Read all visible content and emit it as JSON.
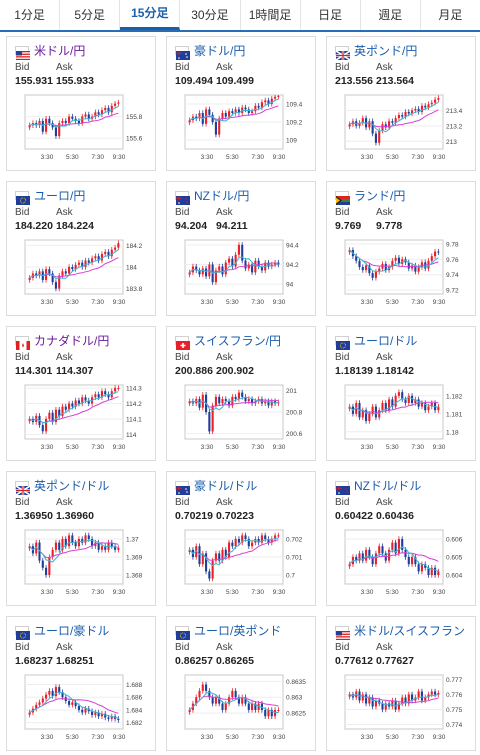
{
  "tabs": [
    "1分足",
    "5分足",
    "15分足",
    "30分足",
    "1時間足",
    "日足",
    "週足",
    "月足"
  ],
  "active_tab": 2,
  "labels": {
    "bid": "Bid",
    "ask": "Ask"
  },
  "colors": {
    "up": "#e8202a",
    "down": "#1f3d99",
    "ma_short": "#3cb4d4",
    "ma_long": "#d640d6",
    "link": "#1b5cab"
  },
  "time_ticks": [
    "3:30",
    "5:30",
    "7:30",
    "9:30"
  ],
  "pairs": [
    {
      "name": "米ドル/円",
      "flag": "us-jp",
      "name_color": "purple",
      "bid": "155.931",
      "ask": "155.933",
      "y_ticks": [
        "155.8",
        "155.6"
      ],
      "ylim": [
        155.5,
        156.0
      ],
      "candles": [
        155.72,
        155.74,
        155.72,
        155.76,
        155.66,
        155.78,
        155.74,
        155.7,
        155.62,
        155.74,
        155.76,
        155.74,
        155.8,
        155.78,
        155.76,
        155.74,
        155.8,
        155.82,
        155.78,
        155.8,
        155.84,
        155.82,
        155.86,
        155.88,
        155.84,
        155.9,
        155.92,
        155.93
      ]
    },
    {
      "name": "豪ドル/円",
      "flag": "au-jp",
      "name_color": "link",
      "bid": "109.494",
      "ask": "109.499",
      "y_ticks": [
        "109.4",
        "109.2",
        "109"
      ],
      "ylim": [
        108.9,
        109.5
      ],
      "candles": [
        109.22,
        109.26,
        109.24,
        109.3,
        109.18,
        109.34,
        109.28,
        109.2,
        109.06,
        109.24,
        109.3,
        109.26,
        109.32,
        109.3,
        109.34,
        109.3,
        109.36,
        109.34,
        109.3,
        109.32,
        109.38,
        109.36,
        109.42,
        109.44,
        109.4,
        109.46,
        109.48,
        109.49
      ]
    },
    {
      "name": "英ポンド/円",
      "flag": "gb-jp",
      "name_color": "link",
      "bid": "213.556",
      "ask": "213.564",
      "y_ticks": [
        "213.4",
        "213.2",
        "213"
      ],
      "ylim": [
        212.9,
        213.6
      ],
      "candles": [
        213.22,
        213.26,
        213.2,
        213.24,
        213.3,
        213.18,
        213.26,
        213.1,
        212.98,
        213.14,
        213.22,
        213.18,
        213.26,
        213.24,
        213.3,
        213.34,
        213.32,
        213.38,
        213.36,
        213.4,
        213.42,
        213.38,
        213.46,
        213.44,
        213.48,
        213.5,
        213.54,
        213.56
      ]
    },
    {
      "name": "ユーロ/円",
      "flag": "eu-jp",
      "name_color": "link",
      "bid": "184.220",
      "ask": "184.224",
      "y_ticks": [
        "184.2",
        "184",
        "183.8"
      ],
      "ylim": [
        183.75,
        184.25
      ],
      "candles": [
        183.9,
        183.94,
        183.92,
        183.96,
        183.88,
        183.98,
        183.94,
        183.86,
        183.8,
        183.92,
        183.96,
        183.94,
        184.0,
        183.98,
        184.02,
        184.04,
        184.0,
        184.06,
        184.04,
        184.08,
        184.1,
        184.06,
        184.12,
        184.14,
        184.1,
        184.16,
        184.18,
        184.22
      ]
    },
    {
      "name": "NZドル/円",
      "flag": "nz-jp",
      "name_color": "link",
      "bid": "94.204",
      "ask": "94.211",
      "y_ticks": [
        "94.4",
        "94.2",
        "94"
      ],
      "ylim": [
        93.9,
        94.45
      ],
      "candles": [
        94.12,
        94.18,
        94.14,
        94.1,
        94.16,
        94.08,
        94.2,
        94.02,
        94.14,
        94.18,
        94.1,
        94.22,
        94.26,
        94.18,
        94.3,
        94.4,
        94.24,
        94.16,
        94.2,
        94.12,
        94.24,
        94.18,
        94.14,
        94.22,
        94.18,
        94.2,
        94.22,
        94.2
      ]
    },
    {
      "name": "ランド/円",
      "flag": "za-jp",
      "name_color": "link",
      "bid": "9.769",
      "ask": "9.778",
      "y_ticks": [
        "9.78",
        "9.76",
        "9.74",
        "9.72"
      ],
      "ylim": [
        9.715,
        9.785
      ],
      "candles": [
        9.772,
        9.764,
        9.758,
        9.75,
        9.746,
        9.752,
        9.742,
        9.736,
        9.744,
        9.748,
        9.754,
        9.746,
        9.75,
        9.758,
        9.762,
        9.754,
        9.76,
        9.756,
        9.748,
        9.752,
        9.744,
        9.75,
        9.756,
        9.748,
        9.758,
        9.764,
        9.77,
        9.769
      ]
    },
    {
      "name": "カナダドル/円",
      "flag": "ca-jp",
      "name_color": "purple",
      "bid": "114.301",
      "ask": "114.307",
      "y_ticks": [
        "114.3",
        "114.2",
        "114.1",
        "114"
      ],
      "ylim": [
        113.97,
        114.32
      ],
      "candles": [
        114.1,
        114.08,
        114.12,
        114.06,
        114.02,
        114.1,
        114.14,
        114.08,
        114.16,
        114.12,
        114.18,
        114.16,
        114.2,
        114.18,
        114.22,
        114.2,
        114.24,
        114.22,
        114.2,
        114.24,
        114.26,
        114.24,
        114.28,
        114.26,
        114.24,
        114.28,
        114.3,
        114.3
      ]
    },
    {
      "name": "スイスフラン/円",
      "flag": "ch-jp",
      "name_color": "link",
      "bid": "200.886",
      "ask": "200.902",
      "y_ticks": [
        "201",
        "200.8",
        "200.6"
      ],
      "ylim": [
        200.55,
        201.05
      ],
      "candles": [
        200.9,
        200.88,
        200.92,
        200.84,
        200.96,
        200.8,
        200.62,
        200.86,
        200.94,
        200.88,
        200.92,
        200.9,
        200.86,
        200.94,
        200.92,
        200.98,
        200.94,
        200.9,
        200.92,
        200.88,
        200.9,
        200.92,
        200.88,
        200.9,
        200.86,
        200.9,
        200.88,
        200.89
      ]
    },
    {
      "name": "ユーロ/ドル",
      "flag": "eu-us",
      "name_color": "link",
      "bid": "1.18139",
      "ask": "1.18142",
      "y_ticks": [
        "1.182",
        "1.181",
        "1.18"
      ],
      "ylim": [
        1.1796,
        1.1826
      ],
      "candles": [
        1.1814,
        1.181,
        1.1816,
        1.1808,
        1.1812,
        1.1806,
        1.181,
        1.1814,
        1.1808,
        1.1812,
        1.1816,
        1.1812,
        1.1818,
        1.1814,
        1.182,
        1.1822,
        1.1818,
        1.1816,
        1.182,
        1.1816,
        1.1818,
        1.1814,
        1.1816,
        1.1812,
        1.1814,
        1.1816,
        1.1812,
        1.1814
      ]
    },
    {
      "name": "英ポンド/ドル",
      "flag": "gb-us",
      "name_color": "link",
      "bid": "1.36950",
      "ask": "1.36960",
      "y_ticks": [
        "1.37",
        "1.369",
        "1.368"
      ],
      "ylim": [
        1.3675,
        1.3705
      ],
      "candles": [
        1.3696,
        1.3692,
        1.3698,
        1.3688,
        1.3684,
        1.368,
        1.369,
        1.3694,
        1.3698,
        1.3694,
        1.37,
        1.3696,
        1.3702,
        1.3698,
        1.3696,
        1.37,
        1.3698,
        1.3702,
        1.37,
        1.3696,
        1.3698,
        1.3694,
        1.3696,
        1.3694,
        1.3698,
        1.3696,
        1.3694,
        1.3695
      ]
    },
    {
      "name": "豪ドル/ドル",
      "flag": "au-us",
      "name_color": "link",
      "bid": "0.70219",
      "ask": "0.70223",
      "y_ticks": [
        "0.702",
        "0.701",
        "0.7"
      ],
      "ylim": [
        0.6995,
        0.7025
      ],
      "candles": [
        0.7014,
        0.701,
        0.7016,
        0.7006,
        0.7012,
        0.7002,
        0.6998,
        0.7008,
        0.7012,
        0.7008,
        0.7014,
        0.701,
        0.7018,
        0.7016,
        0.702,
        0.7018,
        0.7022,
        0.702,
        0.7016,
        0.7018,
        0.702,
        0.7018,
        0.7022,
        0.702,
        0.7018,
        0.702,
        0.7022,
        0.7022
      ]
    },
    {
      "name": "NZドル/ドル",
      "flag": "nz-us",
      "name_color": "link",
      "bid": "0.60422",
      "ask": "0.60436",
      "y_ticks": [
        "0.606",
        "0.605",
        "0.604"
      ],
      "ylim": [
        0.6035,
        0.6065
      ],
      "candles": [
        0.6046,
        0.605,
        0.6048,
        0.6052,
        0.6048,
        0.6054,
        0.605,
        0.6046,
        0.6052,
        0.6056,
        0.6052,
        0.6048,
        0.6054,
        0.6058,
        0.6052,
        0.606,
        0.6054,
        0.605,
        0.6046,
        0.605,
        0.6046,
        0.6042,
        0.6046,
        0.6044,
        0.604,
        0.6044,
        0.604,
        0.6042
      ]
    },
    {
      "name": "ユーロ/豪ドル",
      "flag": "eu-au",
      "name_color": "link",
      "bid": "1.68237",
      "ask": "1.68251",
      "y_ticks": [
        "1.688",
        "1.686",
        "1.684",
        "1.682"
      ],
      "ylim": [
        1.681,
        1.6895
      ],
      "candles": [
        1.6836,
        1.6842,
        1.6848,
        1.6852,
        1.6858,
        1.6864,
        1.687,
        1.6862,
        1.6876,
        1.6868,
        1.686,
        1.6854,
        1.6848,
        1.6852,
        1.6846,
        1.684,
        1.6836,
        1.6842,
        1.6838,
        1.6832,
        1.6836,
        1.683,
        1.6834,
        1.6828,
        1.6826,
        1.683,
        1.6826,
        1.6824
      ]
    },
    {
      "name": "ユーロ/英ポンド",
      "flag": "eu-gb",
      "name_color": "link",
      "bid": "0.86257",
      "ask": "0.86265",
      "y_ticks": [
        "0.8635",
        "0.863",
        "0.8625"
      ],
      "ylim": [
        0.862,
        0.8637
      ],
      "candles": [
        0.8626,
        0.8628,
        0.863,
        0.8632,
        0.8634,
        0.8632,
        0.863,
        0.8628,
        0.863,
        0.8628,
        0.8626,
        0.8628,
        0.863,
        0.8632,
        0.863,
        0.8628,
        0.863,
        0.8628,
        0.8626,
        0.8628,
        0.8626,
        0.8628,
        0.8626,
        0.8624,
        0.8626,
        0.8624,
        0.8626,
        0.8626
      ]
    },
    {
      "name": "米ドル/スイスフラン",
      "flag": "us-ch",
      "name_color": "link",
      "bid": "0.77612",
      "ask": "0.77627",
      "y_ticks": [
        "0.777",
        "0.776",
        "0.775",
        "0.774"
      ],
      "ylim": [
        0.7737,
        0.7773
      ],
      "candles": [
        0.776,
        0.7758,
        0.7762,
        0.7756,
        0.776,
        0.7754,
        0.7758,
        0.7752,
        0.7756,
        0.7754,
        0.775,
        0.7754,
        0.7752,
        0.7756,
        0.775,
        0.7754,
        0.7758,
        0.7754,
        0.776,
        0.7756,
        0.7758,
        0.7762,
        0.7756,
        0.7758,
        0.776,
        0.7762,
        0.776,
        0.7761
      ]
    }
  ]
}
